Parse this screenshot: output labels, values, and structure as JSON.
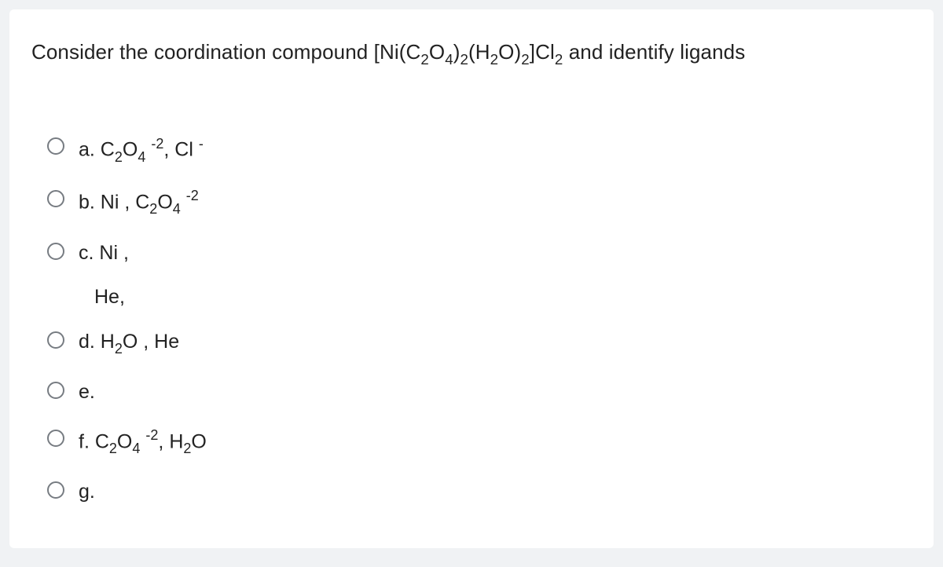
{
  "question": {
    "prefix": "Consider the coordination compound [Ni(C",
    "s1": "2",
    "mid1": "O",
    "s2": "4",
    "mid2": ")",
    "s3": "2",
    "mid3": "(H",
    "s4": "2",
    "mid4": "O)",
    "s5": "2",
    "mid5": "]Cl",
    "s6": "2",
    "suffix": "  and identify ligands"
  },
  "options": {
    "a": {
      "letter": "a. ",
      "p1": "C",
      "sub1": "2",
      "p2": "O",
      "sub2": "4",
      "sup1": " -2",
      "comma": ",  ",
      "p3": "Cl ",
      "sup2": "-"
    },
    "b": {
      "letter": "b. ",
      "p1": "Ni , C",
      "sub1": "2",
      "p2": "O",
      "sub2": "4",
      "sup1": " -2"
    },
    "c": {
      "letter": "c. ",
      "p1": "Ni ,"
    },
    "c_extra": "He,",
    "d": {
      "letter": "d. ",
      "p1": "H",
      "sub1": "2",
      "p2": "O , He"
    },
    "e": {
      "letter": "e."
    },
    "f": {
      "letter": "f. ",
      "p1": "C",
      "sub1": "2",
      "p2": "O",
      "sub2": "4",
      "sup1": " -2",
      "comma": ", ",
      "p3": "H",
      "sub3": "2",
      "p4": "O"
    },
    "g": {
      "letter": "g."
    }
  },
  "styling": {
    "card_bg": "#ffffff",
    "page_bg": "#f0f2f4",
    "text_color": "#222222",
    "radio_border": "#777c82",
    "question_fontsize": 26,
    "option_fontsize": 25,
    "card_radius": 6
  }
}
